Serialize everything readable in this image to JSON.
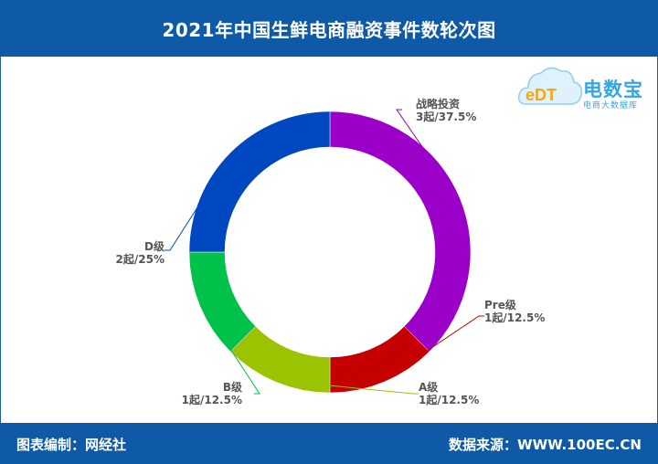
{
  "header": {
    "title": "2021年中国生鲜电商融资事件数轮次图"
  },
  "footer": {
    "left": "图表编制：网经社",
    "right": "数据来源：WWW.100EC.CN"
  },
  "logo": {
    "text": "电数宝",
    "subtitle": "电商大数据库",
    "badge": "eDT"
  },
  "chart_data": {
    "type": "pie",
    "donut": true,
    "legend": "none",
    "slices": [
      {
        "name": "战略投资",
        "count": 3,
        "unit": "起",
        "percent": 37.5,
        "label_value": "3起/37.5%",
        "color": "#9b00c8"
      },
      {
        "name": "Pre级",
        "count": 1,
        "unit": "起",
        "percent": 12.5,
        "label_value": "1起/12.5%",
        "color": "#c40000"
      },
      {
        "name": "A级",
        "count": 1,
        "unit": "起",
        "percent": 12.5,
        "label_value": "1起/12.5%",
        "color": "#9bc300"
      },
      {
        "name": "B级",
        "count": 1,
        "unit": "起",
        "percent": 12.5,
        "label_value": "1起/12.5%",
        "color": "#00c24a"
      },
      {
        "name": "D级",
        "count": 2,
        "unit": "起",
        "percent": 25,
        "label_value": "2起/25%",
        "color": "#0047c2"
      }
    ]
  }
}
